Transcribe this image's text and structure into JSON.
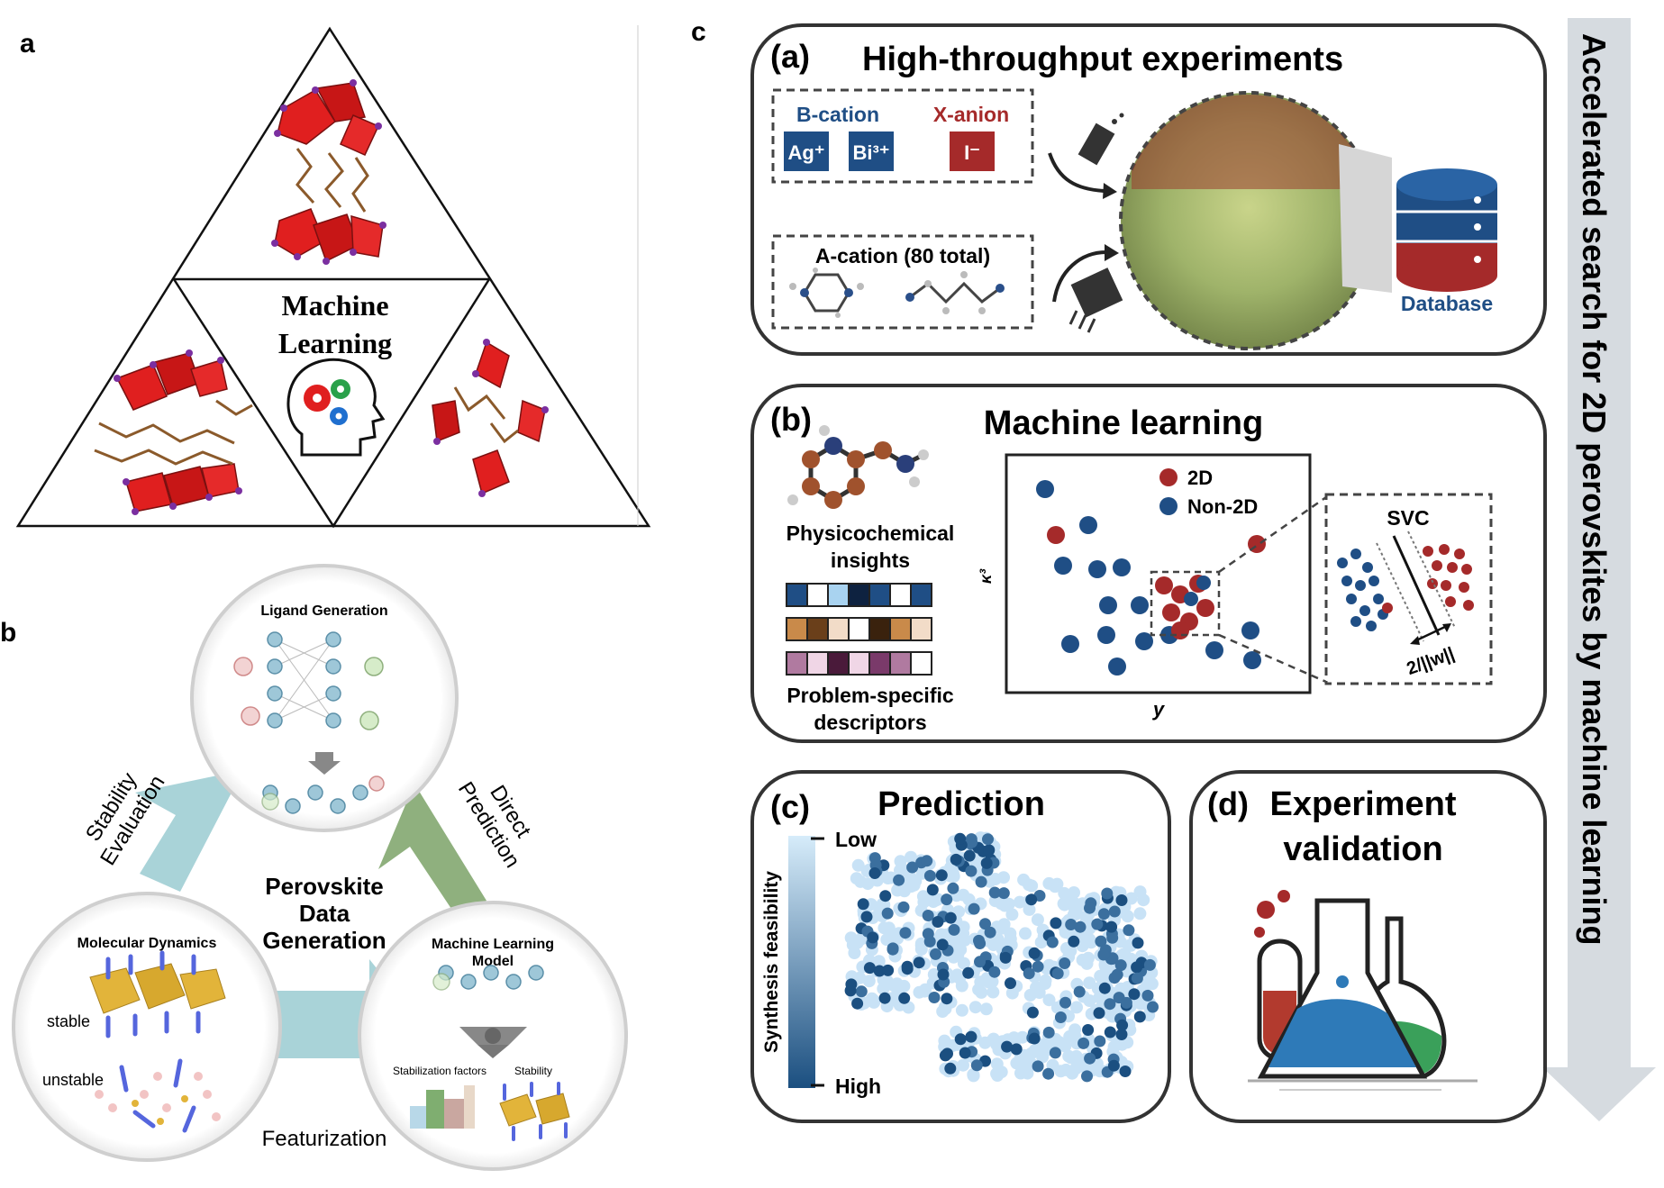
{
  "panel_labels": {
    "a": "a",
    "b": "b",
    "c": "c"
  },
  "panel_a": {
    "center_line1": "Machine",
    "center_line2": "Learning"
  },
  "panel_b": {
    "ligand_generation": "Ligand Generation",
    "molecular_dynamics": "Molecular Dynamics",
    "stable": "stable",
    "unstable": "unstable",
    "ml_model_line1": "Machine Learning",
    "ml_model_line2": "Model",
    "stabilization_factors": "Stabilization factors",
    "stability": "Stability",
    "center_line1": "Perovskite",
    "center_line2": "Data",
    "center_line3": "Generation",
    "stability_evaluation_line1": "Stability",
    "stability_evaluation_line2": "Evaluation",
    "direct_prediction_line1": "Direct",
    "direct_prediction_line2": "Prediction",
    "featurization": "Featurization"
  },
  "panel_c": {
    "side_arrow_text": "Accelerated search for 2D perovskites by machine learning",
    "a_label": "(a)",
    "a_title": "High-throughput experiments",
    "b_cation": "B-cation",
    "ag": "Ag⁺",
    "bi": "Bi³⁺",
    "x_anion": "X-anion",
    "iodide": "I⁻",
    "a_cation": "A-cation (80 total)",
    "database": "Database",
    "b_label": "(b)",
    "b_title": "Machine learning",
    "physchem_line1": "Physicochemical",
    "physchem_line2": "insights",
    "problem_line1": "Problem-specific",
    "problem_line2": "descriptors",
    "legend_2d": "2D",
    "legend_non2d": "Non-2D",
    "axis_x": "y",
    "axis_y": "κ³",
    "svc": "SVC",
    "margin_label": "2/||w||",
    "c_label": "(c)",
    "c_title": "Prediction",
    "low": "Low",
    "high": "High",
    "synthesis_feasibility": "Synthesis feasibility",
    "d_label": "(d)",
    "d_title_line1": "Experiment",
    "d_title_line2": "validation"
  },
  "colors": {
    "navy": "#1f4e85",
    "crimson": "#a52a2a",
    "teal_arrow": "#a9d3d8",
    "green_arrow": "#8fb07e",
    "grey_arrow": "#d6dbe0",
    "octahedron_red": "#e01f1f"
  }
}
